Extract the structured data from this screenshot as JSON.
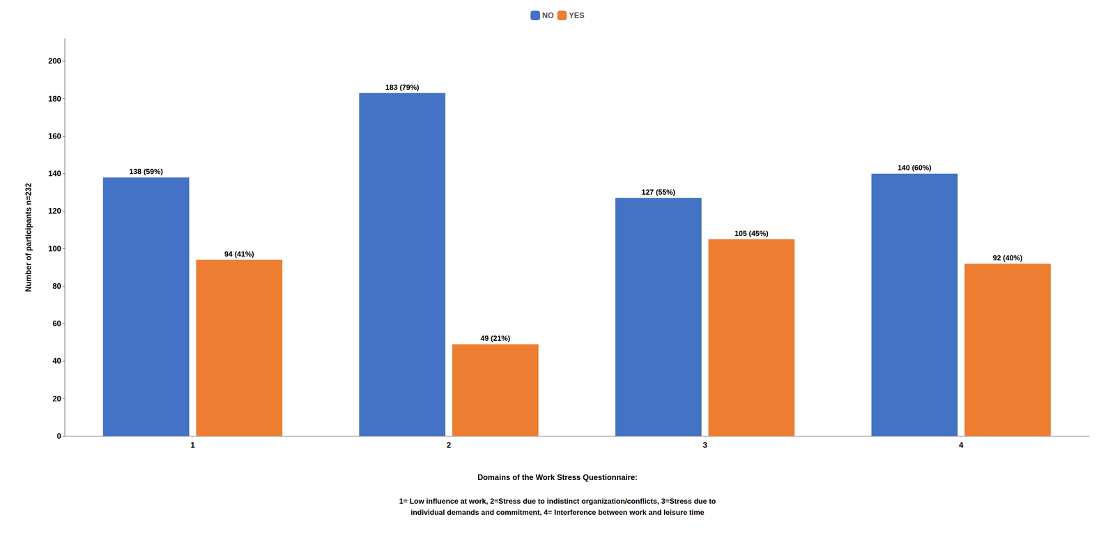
{
  "chart_data": {
    "type": "bar",
    "categories": [
      1,
      2,
      3,
      4
    ],
    "series": [
      {
        "name": "NO",
        "color": "#4472C4",
        "values": [
          138,
          183,
          127,
          140
        ],
        "value_labels": [
          "138 (59%)",
          "183 (79%)",
          "127 (55%)",
          "140 (60%)"
        ]
      },
      {
        "name": "YES",
        "color": "#ED7D31",
        "values": [
          94,
          49,
          105,
          92
        ],
        "value_labels": [
          "94 (41%)",
          "49 (21%)",
          "105 (45%)",
          "92 (40%)"
        ]
      }
    ],
    "ylim": [
      0,
      212
    ],
    "yticks": [
      0,
      20,
      40,
      60,
      80,
      100,
      120,
      140,
      160,
      180,
      200
    ],
    "ylabel": "Number of participants n=232",
    "xlabel": "Domains of the Work Stress Questionnaire:",
    "annotation": "1= Low influence at work, 2=Stress due to indistinct organization/conflicts, 3=Stress due to\nindividual demands and commitment, 4= Interference between work and leisure time",
    "data_labels": true,
    "legend": "top",
    "grid": false
  }
}
